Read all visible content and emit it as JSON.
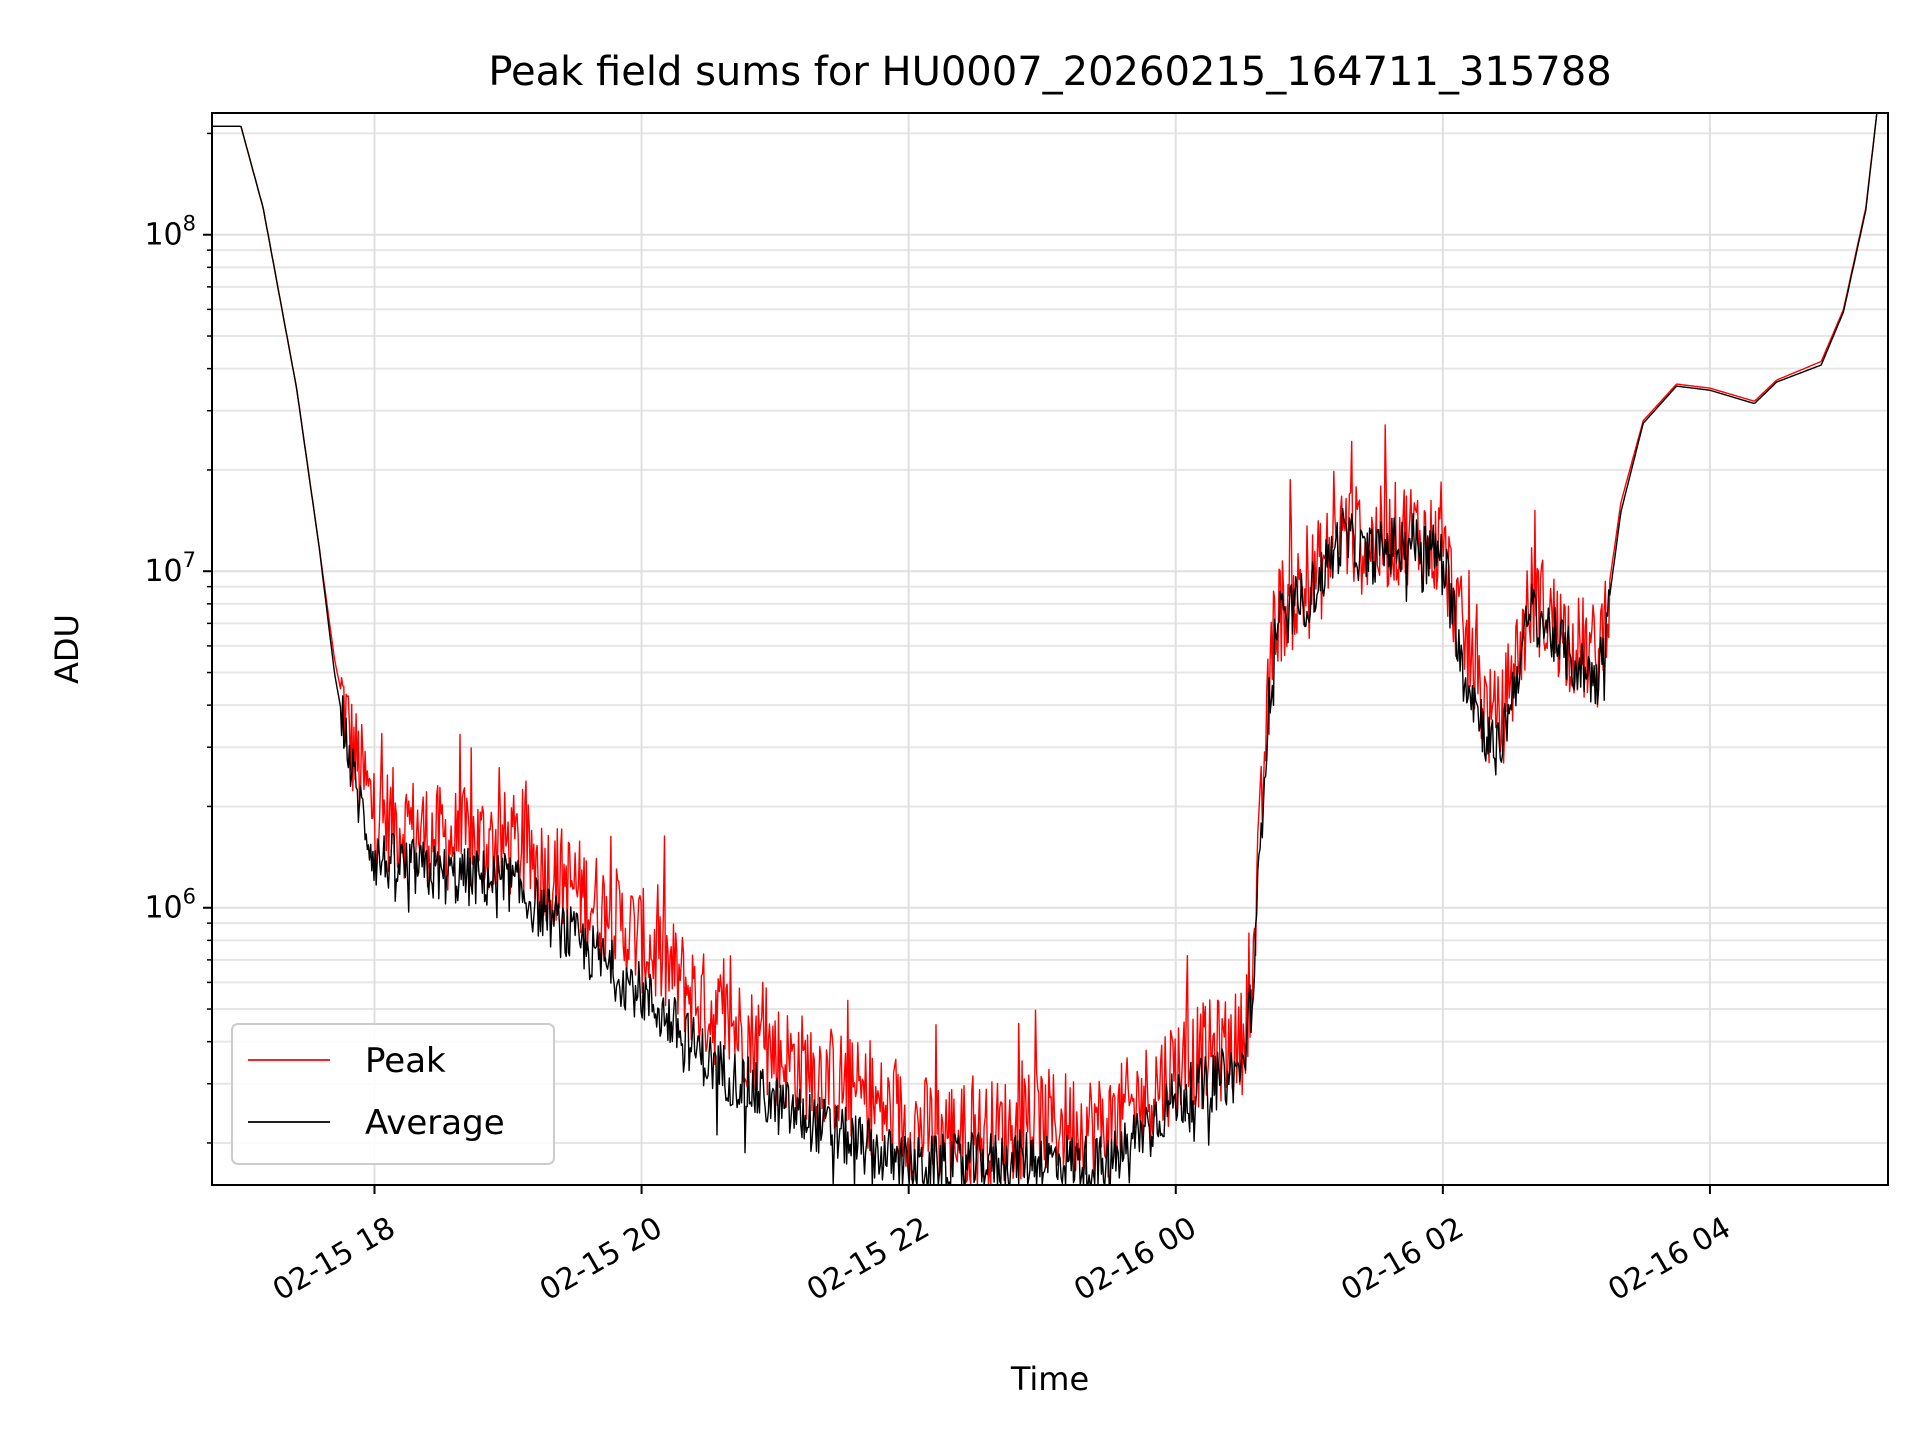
{
  "chart_data": {
    "type": "line",
    "title": "Peak field sums for HU0007_20260215_164711_315788",
    "xlabel": "Time",
    "ylabel": "ADU",
    "yscale": "log",
    "grid": true,
    "legend_position": "lower-left",
    "xlim": [
      "2026-02-15T16:47",
      "2026-02-16T05:20"
    ],
    "ylim": [
      150000,
      230000000
    ],
    "x_ticks": [
      {
        "t": "2026-02-15T18:00",
        "label": "02-15 18"
      },
      {
        "t": "2026-02-15T20:00",
        "label": "02-15 20"
      },
      {
        "t": "2026-02-15T22:00",
        "label": "02-15 22"
      },
      {
        "t": "2026-02-16T00:00",
        "label": "02-16 00"
      },
      {
        "t": "2026-02-16T02:00",
        "label": "02-16 02"
      },
      {
        "t": "2026-02-16T04:00",
        "label": "02-16 04"
      }
    ],
    "y_ticks": [
      {
        "v": 1000000,
        "base": "10",
        "exp": "6"
      },
      {
        "v": 10000000,
        "base": "10",
        "exp": "7"
      },
      {
        "v": 100000000,
        "base": "10",
        "exp": "8"
      }
    ],
    "series": [
      {
        "name": "Peak",
        "color": "#ff0000",
        "points": [
          [
            "2026-02-15T16:47",
            210000000
          ],
          [
            "2026-02-15T17:00",
            210000000
          ],
          [
            "2026-02-15T17:10",
            120000000
          ],
          [
            "2026-02-15T17:25",
            35000000
          ],
          [
            "2026-02-15T17:35",
            12000000
          ],
          [
            "2026-02-15T17:42",
            5500000
          ],
          [
            "2026-02-15T17:50",
            3000000
          ],
          [
            "2026-02-15T18:00",
            1900000
          ],
          [
            "2026-02-15T18:30",
            1600000
          ],
          [
            "2026-02-15T19:00",
            1550000
          ],
          [
            "2026-02-15T19:30",
            1150000
          ],
          [
            "2026-02-15T20:00",
            800000
          ],
          [
            "2026-02-15T20:30",
            500000
          ],
          [
            "2026-02-15T21:00",
            370000
          ],
          [
            "2026-02-15T21:30",
            300000
          ],
          [
            "2026-02-15T22:00",
            225000
          ],
          [
            "2026-02-15T22:30",
            210000
          ],
          [
            "2026-02-15T23:00",
            230000
          ],
          [
            "2026-02-15T23:30",
            225000
          ],
          [
            "2026-02-15T23:45",
            270000
          ],
          [
            "2026-02-16T00:00",
            340000
          ],
          [
            "2026-02-16T00:30",
            400000
          ],
          [
            "2026-02-16T00:35",
            700000
          ],
          [
            "2026-02-16T00:40",
            3000000
          ],
          [
            "2026-02-16T00:45",
            7500000
          ],
          [
            "2026-02-16T01:00",
            9000000
          ],
          [
            "2026-02-16T01:10",
            11500000
          ],
          [
            "2026-02-16T01:15",
            13500000
          ],
          [
            "2026-02-16T01:25",
            12000000
          ],
          [
            "2026-02-16T01:45",
            13200000
          ],
          [
            "2026-02-16T02:00",
            11500000
          ],
          [
            "2026-02-16T02:10",
            6000000
          ],
          [
            "2026-02-16T02:20",
            3800000
          ],
          [
            "2026-02-16T02:25",
            3400000
          ],
          [
            "2026-02-16T02:30",
            4500000
          ],
          [
            "2026-02-16T02:40",
            8500000
          ],
          [
            "2026-02-16T02:50",
            7000000
          ],
          [
            "2026-02-16T03:00",
            6000000
          ],
          [
            "2026-02-16T03:10",
            5500000
          ],
          [
            "2026-02-16T03:20",
            16000000
          ],
          [
            "2026-02-16T03:30",
            28000000
          ],
          [
            "2026-02-16T03:45",
            36000000
          ],
          [
            "2026-02-16T04:00",
            35000000
          ],
          [
            "2026-02-16T04:20",
            32000000
          ],
          [
            "2026-02-16T04:30",
            37000000
          ],
          [
            "2026-02-16T04:50",
            42000000
          ],
          [
            "2026-02-16T05:00",
            60000000
          ],
          [
            "2026-02-16T05:10",
            120000000
          ],
          [
            "2026-02-16T05:15",
            230000000
          ],
          [
            "2026-02-16T05:20",
            230000000
          ]
        ]
      },
      {
        "name": "Average",
        "color": "#000000",
        "points": [
          [
            "2026-02-15T16:47",
            210000000
          ],
          [
            "2026-02-15T17:00",
            210000000
          ],
          [
            "2026-02-15T17:10",
            120000000
          ],
          [
            "2026-02-15T17:25",
            35000000
          ],
          [
            "2026-02-15T17:35",
            12000000
          ],
          [
            "2026-02-15T17:42",
            5000000
          ],
          [
            "2026-02-15T17:50",
            2500000
          ],
          [
            "2026-02-15T18:00",
            1400000
          ],
          [
            "2026-02-15T18:30",
            1250000
          ],
          [
            "2026-02-15T19:00",
            1200000
          ],
          [
            "2026-02-15T19:30",
            800000
          ],
          [
            "2026-02-15T20:00",
            560000
          ],
          [
            "2026-02-15T20:30",
            350000
          ],
          [
            "2026-02-15T21:00",
            260000
          ],
          [
            "2026-02-15T21:30",
            210000
          ],
          [
            "2026-02-15T22:00",
            170000
          ],
          [
            "2026-02-15T22:30",
            175000
          ],
          [
            "2026-02-15T23:00",
            180000
          ],
          [
            "2026-02-15T23:30",
            170000
          ],
          [
            "2026-02-15T23:45",
            220000
          ],
          [
            "2026-02-16T00:00",
            270000
          ],
          [
            "2026-02-16T00:30",
            330000
          ],
          [
            "2026-02-16T00:35",
            600000
          ],
          [
            "2026-02-16T00:40",
            2800000
          ],
          [
            "2026-02-16T00:45",
            7000000
          ],
          [
            "2026-02-16T01:00",
            8500000
          ],
          [
            "2026-02-16T01:10",
            11000000
          ],
          [
            "2026-02-16T01:15",
            12800000
          ],
          [
            "2026-02-16T01:25",
            11000000
          ],
          [
            "2026-02-16T01:45",
            12500000
          ],
          [
            "2026-02-16T02:00",
            11000000
          ],
          [
            "2026-02-16T02:10",
            5000000
          ],
          [
            "2026-02-16T02:20",
            3200000
          ],
          [
            "2026-02-16T02:25",
            2900000
          ],
          [
            "2026-02-16T02:30",
            4000000
          ],
          [
            "2026-02-16T02:40",
            7800000
          ],
          [
            "2026-02-16T02:50",
            6400000
          ],
          [
            "2026-02-16T03:00",
            5200000
          ],
          [
            "2026-02-16T03:10",
            4800000
          ],
          [
            "2026-02-16T03:20",
            15000000
          ],
          [
            "2026-02-16T03:30",
            27500000
          ],
          [
            "2026-02-16T03:45",
            35500000
          ],
          [
            "2026-02-16T04:00",
            34500000
          ],
          [
            "2026-02-16T04:20",
            31500000
          ],
          [
            "2026-02-16T04:30",
            36500000
          ],
          [
            "2026-02-16T04:50",
            41000000
          ],
          [
            "2026-02-16T05:00",
            59000000
          ],
          [
            "2026-02-16T05:10",
            118000000
          ],
          [
            "2026-02-16T05:15",
            230000000
          ],
          [
            "2026-02-16T05:20",
            230000000
          ]
        ]
      }
    ]
  }
}
